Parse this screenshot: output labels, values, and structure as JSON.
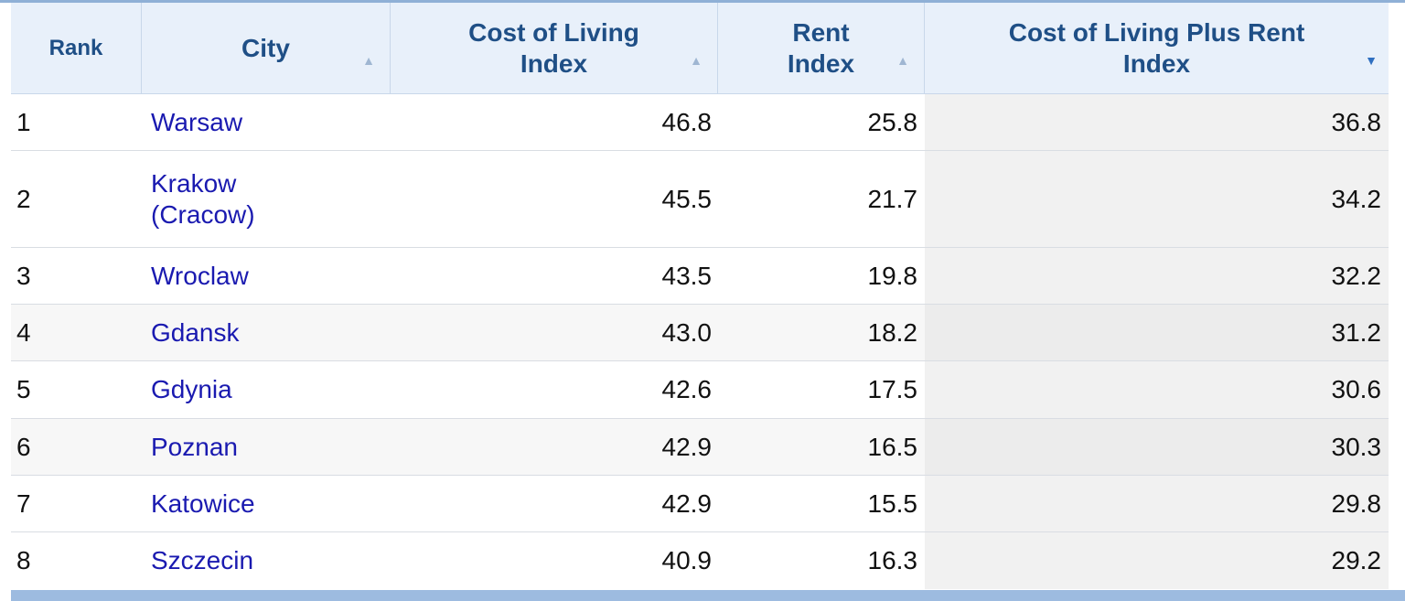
{
  "table": {
    "headers": {
      "rank": "Rank",
      "city": "City",
      "col_line1": "Cost of Living",
      "col_line2": "Index",
      "rent_line1": "Rent",
      "rent_line2": "Index",
      "plus_line1": "Cost of Living Plus Rent",
      "plus_line2": "Index"
    },
    "sort_icons": {
      "city": "▲",
      "col": "▲",
      "rent": "▲",
      "plus": "▼"
    },
    "rows": [
      {
        "rank": "1",
        "city": "Warsaw",
        "col": "46.8",
        "rent": "25.8",
        "plus": "36.8"
      },
      {
        "rank": "2",
        "city_line1": "Krakow",
        "city_line2": "(Cracow)",
        "col": "45.5",
        "rent": "21.7",
        "plus": "34.2"
      },
      {
        "rank": "3",
        "city": "Wroclaw",
        "col": "43.5",
        "rent": "19.8",
        "plus": "32.2"
      },
      {
        "rank": "4",
        "city": "Gdansk",
        "col": "43.0",
        "rent": "18.2",
        "plus": "31.2"
      },
      {
        "rank": "5",
        "city": "Gdynia",
        "col": "42.6",
        "rent": "17.5",
        "plus": "30.6"
      },
      {
        "rank": "6",
        "city": "Poznan",
        "col": "42.9",
        "rent": "16.5",
        "plus": "30.3"
      },
      {
        "rank": "7",
        "city": "Katowice",
        "col": "42.9",
        "rent": "15.5",
        "plus": "29.8"
      },
      {
        "rank": "8",
        "city": "Szczecin",
        "col": "40.9",
        "rent": "16.3",
        "plus": "29.2"
      }
    ]
  }
}
